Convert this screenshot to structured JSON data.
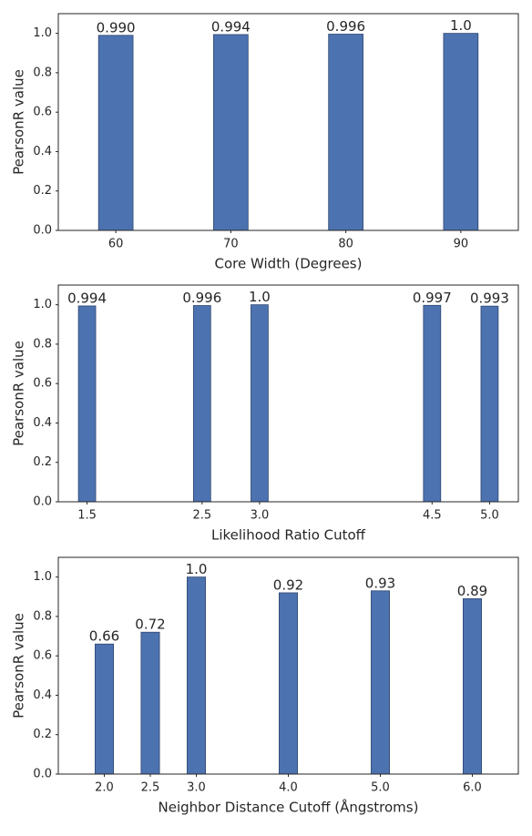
{
  "chart_data": [
    {
      "type": "bar",
      "x": [
        60,
        70,
        80,
        90
      ],
      "values": [
        0.99,
        0.994,
        0.996,
        1.0
      ],
      "value_labels": [
        "0.990",
        "0.994",
        "0.996",
        "1.0"
      ],
      "bar_width": 3,
      "xlim": [
        55,
        95
      ],
      "xticks": [
        60,
        70,
        80,
        90
      ],
      "ylim": [
        0,
        1.1
      ],
      "yticks": [
        {
          "value": 0,
          "label": "0.0"
        },
        0.2,
        0.4,
        0.6,
        0.8,
        {
          "value": 1,
          "label": "1.0"
        }
      ],
      "xlabel": "Core Width (Degrees)",
      "ylabel": "PearsonR value",
      "color": "#4c72b0"
    },
    {
      "type": "bar",
      "x": [
        1.5,
        2.5,
        3.0,
        4.5,
        5.0
      ],
      "values": [
        0.994,
        0.996,
        1.0,
        0.997,
        0.993
      ],
      "value_labels": [
        "0.994",
        "0.996",
        "1.0",
        "0.997",
        "0.993"
      ],
      "bar_width": 0.15,
      "xlim": [
        1.25,
        5.25
      ],
      "xticks": [
        1.5,
        2.5,
        {
          "value": 3,
          "label": "3.0"
        },
        4.5,
        {
          "value": 5,
          "label": "5.0"
        }
      ],
      "ylim": [
        0,
        1.1
      ],
      "yticks": [
        {
          "value": 0,
          "label": "0.0"
        },
        0.2,
        0.4,
        0.6,
        0.8,
        {
          "value": 1,
          "label": "1.0"
        }
      ],
      "xlabel": "Likelihood Ratio Cutoff",
      "ylabel": "PearsonR value",
      "color": "#4c72b0"
    },
    {
      "type": "bar",
      "x": [
        2.0,
        2.5,
        3.0,
        4.0,
        5.0,
        6.0
      ],
      "values": [
        0.66,
        0.72,
        1.0,
        0.92,
        0.93,
        0.89
      ],
      "value_labels": [
        "0.66",
        "0.72",
        "1.0",
        "0.92",
        "0.93",
        "0.89"
      ],
      "bar_width": 0.2,
      "xlim": [
        1.5,
        6.5
      ],
      "xticks": [
        {
          "value": 2,
          "label": "2.0"
        },
        2.5,
        {
          "value": 3,
          "label": "3.0"
        },
        {
          "value": 4,
          "label": "4.0"
        },
        {
          "value": 5,
          "label": "5.0"
        },
        {
          "value": 6,
          "label": "6.0"
        }
      ],
      "ylim": [
        0,
        1.1
      ],
      "yticks": [
        {
          "value": 0,
          "label": "0.0"
        },
        0.2,
        0.4,
        0.6,
        0.8,
        {
          "value": 1,
          "label": "1.0"
        }
      ],
      "xlabel": "Neighbor Distance Cutoff (Ångstroms)",
      "ylabel": "PearsonR value",
      "color": "#4c72b0"
    }
  ]
}
